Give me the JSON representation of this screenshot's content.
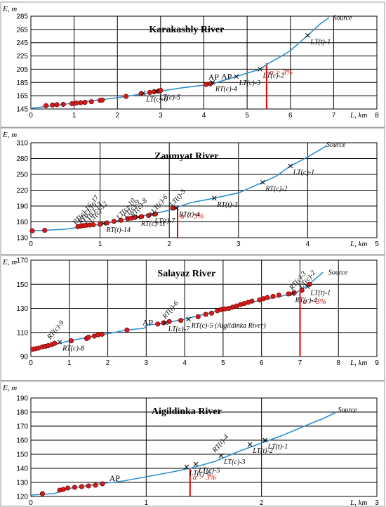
{
  "chart_data": [
    {
      "type": "line",
      "title": "Karakashly River",
      "ylabel": "E, m",
      "xlabel": "L, km",
      "xlim": [
        0,
        8
      ],
      "ylim": [
        145,
        285
      ],
      "xticks": [
        0,
        1,
        2,
        3,
        4,
        5,
        6,
        7,
        8
      ],
      "yticks": [
        145,
        165,
        185,
        205,
        225,
        245,
        265,
        285
      ],
      "profile": [
        [
          0,
          146
        ],
        [
          0.5,
          150
        ],
        [
          1,
          154
        ],
        [
          1.5,
          158
        ],
        [
          2,
          162
        ],
        [
          2.5,
          167
        ],
        [
          3,
          172
        ],
        [
          3.5,
          177
        ],
        [
          4,
          181
        ],
        [
          4.3,
          185
        ],
        [
          4.7,
          193
        ],
        [
          5,
          199
        ],
        [
          5.3,
          205
        ],
        [
          5.5,
          214
        ],
        [
          5.8,
          225
        ],
        [
          6,
          233
        ],
        [
          6.4,
          256
        ],
        [
          6.7,
          274
        ],
        [
          6.9,
          283
        ]
      ],
      "points": [
        [
          0.35,
          150
        ],
        [
          0.5,
          151
        ],
        [
          0.6,
          151.5
        ],
        [
          0.75,
          152
        ],
        [
          0.95,
          153
        ],
        [
          1.05,
          154
        ],
        [
          1.15,
          154.5
        ],
        [
          1.25,
          155
        ],
        [
          1.4,
          156
        ],
        [
          1.6,
          158
        ],
        [
          1.65,
          158.5
        ],
        [
          2.2,
          164
        ],
        [
          2.55,
          168
        ],
        [
          2.75,
          170
        ],
        [
          2.85,
          171
        ],
        [
          2.95,
          172
        ],
        [
          3.0,
          173
        ],
        [
          4.05,
          182
        ],
        [
          4.15,
          183
        ]
      ],
      "crosses": [
        {
          "x": 2.6,
          "y": 169,
          "label": "LT(c)-6"
        },
        {
          "x": 2.9,
          "y": 172,
          "label": "LT(c)-5"
        },
        {
          "x": 4.2,
          "y": 185,
          "label": "RT(c)-4"
        },
        {
          "x": 4.75,
          "y": 194,
          "label": "LT(c)-3"
        },
        {
          "x": 5.3,
          "y": 205,
          "label": "LT(c)-2"
        },
        {
          "x": 6.4,
          "y": 256,
          "label": "LT(t)-1"
        }
      ],
      "texts": [
        {
          "x": 6.95,
          "y": 279,
          "label": "Source"
        },
        {
          "x": 4.1,
          "y": 189,
          "label": "AP"
        },
        {
          "x": 4.4,
          "y": 190,
          "label": "AP"
        }
      ],
      "threshold": {
        "x": 5.45,
        "label": "α > 3%"
      }
    },
    {
      "type": "line",
      "title": "Zaumyat River",
      "ylabel": "E, m",
      "xlabel": "L, km",
      "xlim": [
        0,
        5
      ],
      "ylim": [
        130,
        310
      ],
      "xticks": [
        0,
        1,
        2,
        3,
        4,
        5
      ],
      "yticks": [
        130,
        160,
        190,
        220,
        250,
        280,
        310
      ],
      "profile": [
        [
          0,
          143
        ],
        [
          0.5,
          146
        ],
        [
          0.75,
          151
        ],
        [
          1.0,
          155
        ],
        [
          1.25,
          162
        ],
        [
          1.5,
          168
        ],
        [
          1.75,
          175
        ],
        [
          2.0,
          182
        ],
        [
          2.12,
          188
        ],
        [
          2.3,
          196
        ],
        [
          2.65,
          205
        ],
        [
          3.0,
          215
        ],
        [
          3.35,
          235
        ],
        [
          3.55,
          247
        ],
        [
          3.75,
          266
        ],
        [
          4.0,
          283
        ],
        [
          4.28,
          305
        ]
      ],
      "points": [
        [
          0.02,
          143
        ],
        [
          0.2,
          144
        ],
        [
          0.68,
          151
        ],
        [
          0.72,
          152
        ],
        [
          0.76,
          153
        ],
        [
          0.8,
          153.5
        ],
        [
          0.85,
          154
        ],
        [
          0.9,
          154.5
        ],
        [
          1.0,
          155.5
        ],
        [
          1.1,
          158
        ],
        [
          1.2,
          161
        ],
        [
          1.3,
          163
        ],
        [
          1.4,
          166
        ],
        [
          1.45,
          167
        ],
        [
          1.5,
          168
        ],
        [
          1.6,
          170
        ],
        [
          1.7,
          172
        ],
        [
          1.8,
          175
        ],
        [
          2.05,
          186
        ]
      ],
      "crosses": [
        {
          "x": 1.05,
          "y": 157,
          "label": "RT(t)-14"
        },
        {
          "x": 1.55,
          "y": 169,
          "label": "RT(c)-11"
        },
        {
          "x": 1.75,
          "y": 174,
          "label": "LT(t)-7"
        },
        {
          "x": 2.1,
          "y": 186,
          "label": "RT(t)-4"
        },
        {
          "x": 2.65,
          "y": 205,
          "label": "RT(t)-3"
        },
        {
          "x": 3.35,
          "y": 235,
          "label": "RT(c)-2"
        },
        {
          "x": 3.75,
          "y": 266,
          "label": "LT(c)-1"
        }
      ],
      "texts": [
        {
          "x": 4.25,
          "y": 302,
          "label": "Source"
        },
        {
          "x": 0.65,
          "y": 154,
          "label": "RT(c)-16, 17"
        },
        {
          "x": 0.72,
          "y": 156,
          "label": "RT(c)-15"
        },
        {
          "x": 0.8,
          "y": 157,
          "label": "LT(c)-13"
        },
        {
          "x": 0.88,
          "y": 158,
          "label": "LT(c)-12"
        },
        {
          "x": 1.28,
          "y": 164,
          "label": "LT(c)-10"
        },
        {
          "x": 1.38,
          "y": 166,
          "label": "LT(c)-9"
        },
        {
          "x": 1.48,
          "y": 168,
          "label": "RT(c)-8"
        },
        {
          "x": 1.78,
          "y": 176,
          "label": "LT(c)-6"
        },
        {
          "x": 2.05,
          "y": 188,
          "label": "LT(t)-5"
        }
      ],
      "threshold": {
        "x": 2.12,
        "label": "α > 3%"
      }
    },
    {
      "type": "line",
      "title": "Salayaz River",
      "ylabel": "E, m",
      "xlabel": "L, km",
      "xlim": [
        0,
        9
      ],
      "ylim": [
        90,
        170
      ],
      "xticks": [
        0,
        1,
        2,
        3,
        4,
        5,
        6,
        7,
        8,
        9
      ],
      "yticks": [
        90,
        110,
        130,
        150,
        170
      ],
      "profile": [
        [
          0,
          95
        ],
        [
          0.5,
          99
        ],
        [
          1.0,
          103
        ],
        [
          1.5,
          106
        ],
        [
          2.0,
          109
        ],
        [
          2.5,
          112
        ],
        [
          2.95,
          113.5
        ],
        [
          3.0,
          116
        ],
        [
          3.5,
          118
        ],
        [
          4.0,
          121
        ],
        [
          4.5,
          125
        ],
        [
          5.0,
          129
        ],
        [
          5.5,
          133
        ],
        [
          6.0,
          137
        ],
        [
          6.5,
          140
        ],
        [
          6.9,
          143
        ],
        [
          7.2,
          149
        ],
        [
          7.6,
          160
        ]
      ],
      "points": [
        [
          0.05,
          96
        ],
        [
          0.12,
          96.5
        ],
        [
          0.2,
          97
        ],
        [
          0.3,
          98
        ],
        [
          0.38,
          98.5
        ],
        [
          0.45,
          99
        ],
        [
          0.55,
          100
        ],
        [
          0.62,
          101
        ],
        [
          1.05,
          103
        ],
        [
          1.45,
          105
        ],
        [
          1.5,
          106
        ],
        [
          1.65,
          107
        ],
        [
          1.75,
          108
        ],
        [
          1.85,
          108.5
        ],
        [
          2.5,
          112
        ],
        [
          3.3,
          117
        ],
        [
          3.45,
          118
        ],
        [
          3.6,
          119
        ],
        [
          3.9,
          120
        ],
        [
          4.35,
          123
        ],
        [
          4.55,
          125
        ],
        [
          4.7,
          126
        ],
        [
          4.85,
          128
        ],
        [
          4.95,
          129
        ],
        [
          5.05,
          129.5
        ],
        [
          5.15,
          130
        ],
        [
          5.25,
          131
        ],
        [
          5.35,
          132
        ],
        [
          5.45,
          133
        ],
        [
          5.55,
          134
        ],
        [
          5.65,
          135
        ],
        [
          5.75,
          136
        ],
        [
          5.95,
          137
        ],
        [
          6.05,
          138
        ],
        [
          6.15,
          139
        ],
        [
          6.3,
          140
        ],
        [
          6.45,
          141
        ],
        [
          6.7,
          142
        ],
        [
          6.85,
          143
        ],
        [
          7.05,
          145
        ],
        [
          7.25,
          150
        ]
      ],
      "crosses": [
        {
          "x": 0.75,
          "y": 102,
          "label": "RT(c)-8"
        },
        {
          "x": 3.5,
          "y": 118,
          "label": "LT(c)-7"
        },
        {
          "x": 4.1,
          "y": 121,
          "label": "RT(c)-5 (Aigildinka River)"
        },
        {
          "x": 6.8,
          "y": 142,
          "label": "RT(c)-4"
        },
        {
          "x": 7.2,
          "y": 148,
          "label": "LT(t)-1"
        }
      ],
      "texts": [
        {
          "x": 7.7,
          "y": 158,
          "label": "Source"
        },
        {
          "x": 2.9,
          "y": 116,
          "label": "AP"
        },
        {
          "x": 0.5,
          "y": 104,
          "label": "RT(c)-9"
        },
        {
          "x": 3.5,
          "y": 121,
          "label": "RT(t)-6"
        },
        {
          "x": 6.8,
          "y": 145,
          "label": "RT(c)-3"
        },
        {
          "x": 7.05,
          "y": 146,
          "label": "LT(c)-2"
        }
      ],
      "threshold": {
        "x": 7.0,
        "label": "α > 3%"
      }
    },
    {
      "type": "line",
      "title": "Aigildinka River",
      "ylabel": "E, m",
      "xlabel": "L, km",
      "xlim": [
        0,
        3
      ],
      "ylim": [
        120,
        190
      ],
      "xticks": [
        0,
        1,
        2,
        3
      ],
      "yticks": [
        120,
        130,
        140,
        150,
        160,
        170,
        180,
        190
      ],
      "profile": [
        [
          0,
          121
        ],
        [
          0.2,
          122
        ],
        [
          0.35,
          126
        ],
        [
          0.6,
          129
        ],
        [
          0.8,
          131
        ],
        [
          1.0,
          134
        ],
        [
          1.2,
          137
        ],
        [
          1.38,
          140
        ],
        [
          1.6,
          145
        ],
        [
          1.8,
          152
        ],
        [
          2.0,
          158
        ],
        [
          2.2,
          164
        ],
        [
          2.4,
          171
        ],
        [
          2.55,
          176
        ],
        [
          2.65,
          180
        ]
      ],
      "points": [
        [
          0.1,
          122
        ],
        [
          0.25,
          124.5
        ],
        [
          0.28,
          125
        ],
        [
          0.32,
          126
        ],
        [
          0.38,
          126.5
        ],
        [
          0.44,
          127
        ],
        [
          0.5,
          127.5
        ],
        [
          0.56,
          128
        ],
        [
          0.62,
          129
        ]
      ],
      "crosses": [
        {
          "x": 1.35,
          "y": 141,
          "label": "LT(c)-6"
        },
        {
          "x": 1.43,
          "y": 143,
          "label": "LT(c)-5"
        },
        {
          "x": 1.65,
          "y": 149,
          "label": "LT(c)-3"
        },
        {
          "x": 1.9,
          "y": 157,
          "label": "LT(t)-2"
        },
        {
          "x": 2.03,
          "y": 160,
          "label": "LT(t)-1"
        }
      ],
      "texts": [
        {
          "x": 2.65,
          "y": 180,
          "label": "Source"
        },
        {
          "x": 0.68,
          "y": 131,
          "label": "AP"
        },
        {
          "x": 1.6,
          "y": 151,
          "label": "RT(t)-4"
        }
      ],
      "threshold": {
        "x": 1.38,
        "label": "α > 3%"
      }
    }
  ]
}
